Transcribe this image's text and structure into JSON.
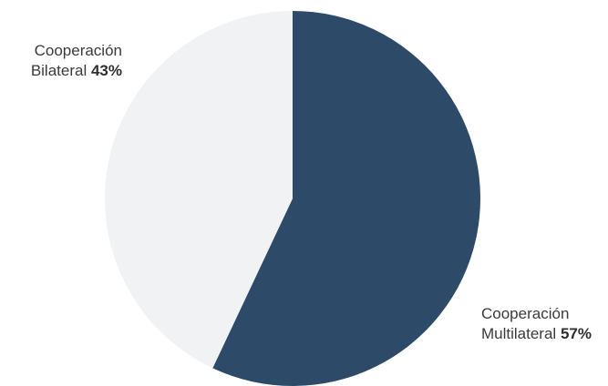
{
  "chart_data": {
    "type": "pie",
    "title": "",
    "slices": [
      {
        "label_line1": "Cooperación",
        "label_line2": "Multilateral",
        "value": 57,
        "value_text": "57%",
        "color": "#2e4a69"
      },
      {
        "label_line1": "Cooperación",
        "label_line2": "Bilateral",
        "value": 43,
        "value_text": "43%",
        "color": "#f1f2f4"
      }
    ]
  }
}
